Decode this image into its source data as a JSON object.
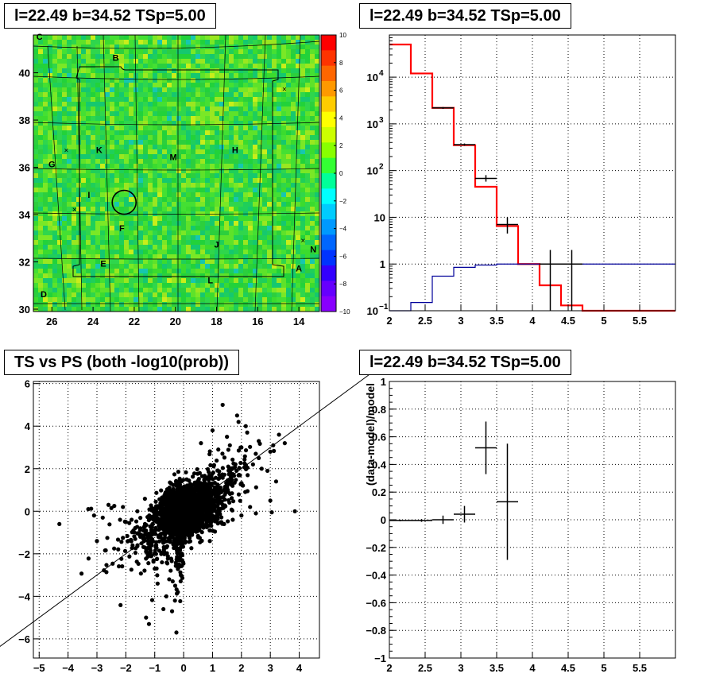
{
  "chart_data": [
    {
      "type": "heatmap",
      "title": "l=22.49 b=34.52 TSp=5.00",
      "x_ticks": [
        "26",
        "24",
        "22",
        "20",
        "18",
        "16",
        "14"
      ],
      "y_ticks": [
        "30",
        "32",
        "34",
        "36",
        "38",
        "40"
      ],
      "xlim": [
        26.9,
        13.0
      ],
      "ylim": [
        29.9,
        41.6
      ],
      "colorbar": {
        "range": [
          -10,
          10
        ],
        "ticks": [
          "10",
          "8",
          "6",
          "4",
          "2",
          "0",
          "-2",
          "-4",
          "-6",
          "-8",
          "-10"
        ]
      },
      "labels": [
        {
          "text": "C",
          "l": 26.6,
          "b": 41.4
        },
        {
          "text": "B",
          "l": 22.9,
          "b": 40.5
        },
        {
          "text": "K",
          "l": 23.7,
          "b": 36.6
        },
        {
          "text": "M",
          "l": 20.1,
          "b": 36.3
        },
        {
          "text": "H",
          "l": 17.1,
          "b": 36.6
        },
        {
          "text": "G",
          "l": 26.0,
          "b": 36.0
        },
        {
          "text": "I",
          "l": 24.2,
          "b": 34.7
        },
        {
          "text": "F",
          "l": 22.6,
          "b": 33.3
        },
        {
          "text": "J",
          "l": 18.0,
          "b": 32.6
        },
        {
          "text": "N",
          "l": 13.3,
          "b": 32.4
        },
        {
          "text": "E",
          "l": 23.5,
          "b": 31.8
        },
        {
          "text": "A",
          "l": 14.0,
          "b": 31.6
        },
        {
          "text": "L",
          "l": 18.3,
          "b": 31.1
        },
        {
          "text": "D",
          "l": 26.4,
          "b": 30.5
        }
      ],
      "crosses": [
        {
          "l": 14.7,
          "b": 39.3
        },
        {
          "l": 25.3,
          "b": 36.7
        },
        {
          "l": 24.9,
          "b": 34.2
        },
        {
          "l": 13.8,
          "b": 32.9
        }
      ],
      "circle": {
        "l": 22.49,
        "b": 34.52,
        "r": 0.6
      }
    },
    {
      "type": "line",
      "title": "l=22.49 b=34.52 TSp=5.00",
      "yscale": "log",
      "xlim": [
        2.0,
        6.0
      ],
      "ylim": [
        0.1,
        80000
      ],
      "x_ticks": [
        "2",
        "2.5",
        "3",
        "3.5",
        "4",
        "4.5",
        "5",
        "5.5"
      ],
      "y_ticks": [
        "10^-1",
        "1",
        "10",
        "10^2",
        "10^3",
        "10^4"
      ],
      "series": [
        {
          "color": "#ff0000",
          "bins": [
            2.0,
            2.3,
            2.6,
            2.9,
            3.2,
            3.5,
            3.8,
            4.1,
            4.4,
            4.7,
            5.0,
            5.3,
            5.6,
            6.0
          ],
          "values": [
            50000,
            12000,
            2200,
            350,
            45,
            6.5,
            1.0,
            0.35,
            0.13,
            0.1,
            0.1,
            0.1,
            0.1
          ]
        },
        {
          "color": "#000099",
          "bins": [
            2.0,
            2.3,
            2.6,
            2.9,
            3.2,
            3.5,
            3.8,
            4.1,
            4.4,
            4.7,
            5.0,
            5.3,
            5.6,
            6.0
          ],
          "values": [
            0.05,
            0.15,
            0.55,
            0.85,
            0.95,
            1.0,
            1.0,
            1.0,
            1.0,
            1.0,
            1.0,
            1.0,
            1.0
          ]
        },
        {
          "color": "#000000",
          "points": [
            {
              "x": 2.75,
              "xerr": 0.15,
              "y": 2200,
              "lo": 2100,
              "hi": 2300
            },
            {
              "x": 3.05,
              "xerr": 0.15,
              "y": 360,
              "lo": 340,
              "hi": 380
            },
            {
              "x": 3.35,
              "xerr": 0.15,
              "y": 68,
              "lo": 58,
              "hi": 80
            },
            {
              "x": 3.65,
              "xerr": 0.15,
              "y": 7,
              "lo": 4.5,
              "hi": 10
            },
            {
              "x": 4.25,
              "xerr": 0.15,
              "y": 1,
              "lo": 0.1,
              "hi": 2.0
            },
            {
              "x": 4.55,
              "xerr": 0.15,
              "y": 1,
              "lo": 0.1,
              "hi": 2.0
            }
          ]
        }
      ]
    },
    {
      "type": "scatter",
      "title": "TS vs PS (both -log10(prob))",
      "xlim": [
        -5.2,
        4.7
      ],
      "ylim": [
        -6.9,
        6.1
      ],
      "x_ticks": [
        "-5",
        "-4",
        "-3",
        "-2",
        "-1",
        "0",
        "1",
        "2",
        "3",
        "4"
      ],
      "y_ticks": [
        "-6",
        "-4",
        "-2",
        "0",
        "2",
        "4",
        "6"
      ],
      "diagonal": {
        "slope": 1,
        "intercept": 0
      },
      "cloud": {
        "n": 2500,
        "seed": 7,
        "x_mean": 0.1,
        "y_mean": 0.05,
        "x_sd": 0.45,
        "y_sd": 0.55
      },
      "points": [
        {
          "x": -4.3,
          "y": -0.6
        },
        {
          "x": -3.3,
          "y": 0.1
        },
        {
          "x": -3.2,
          "y": 0.12
        },
        {
          "x": -3.1,
          "y": -0.2
        },
        {
          "x": -3.0,
          "y": -1.4
        },
        {
          "x": -2.6,
          "y": 0.3
        },
        {
          "x": -2.4,
          "y": 0.25
        },
        {
          "x": -2.1,
          "y": 0.2
        },
        {
          "x": -2.0,
          "y": -0.5
        },
        {
          "x": -1.8,
          "y": -0.4
        },
        {
          "x": -1.5,
          "y": -1.2
        },
        {
          "x": -1.3,
          "y": -1.9
        },
        {
          "x": -1.2,
          "y": -5.3
        },
        {
          "x": -1.3,
          "y": -5.0
        },
        {
          "x": -0.7,
          "y": -4.6
        },
        {
          "x": -0.4,
          "y": -4.7
        },
        {
          "x": -0.25,
          "y": -5.7
        },
        {
          "x": -0.3,
          "y": -4.2
        },
        {
          "x": -0.6,
          "y": -4.0
        },
        {
          "x": -0.2,
          "y": -3.8
        },
        {
          "x": -0.9,
          "y": -3.4
        },
        {
          "x": -0.5,
          "y": -3.2
        },
        {
          "x": -0.1,
          "y": -3.0
        },
        {
          "x": -0.15,
          "y": -2.6
        },
        {
          "x": -0.05,
          "y": -2.3
        },
        {
          "x": -1.0,
          "y": -2.7
        },
        {
          "x": -0.75,
          "y": -2.4
        },
        {
          "x": 1.35,
          "y": 5.0
        },
        {
          "x": 1.85,
          "y": 4.5
        },
        {
          "x": 1.9,
          "y": 4.2
        },
        {
          "x": 2.15,
          "y": 4.0
        },
        {
          "x": 3.3,
          "y": 3.6
        },
        {
          "x": 3.1,
          "y": 3.1
        },
        {
          "x": 2.6,
          "y": 3.3
        },
        {
          "x": 2.2,
          "y": 3.7
        },
        {
          "x": 1.0,
          "y": 3.8
        },
        {
          "x": 1.5,
          "y": 3.5
        },
        {
          "x": 2.0,
          "y": 3.0
        },
        {
          "x": 1.6,
          "y": 3.1
        },
        {
          "x": 3.0,
          "y": 2.8
        },
        {
          "x": 2.6,
          "y": 2.5
        },
        {
          "x": 2.4,
          "y": 2.2
        },
        {
          "x": 2.9,
          "y": 1.9
        },
        {
          "x": 3.2,
          "y": 1.4
        },
        {
          "x": 3.0,
          "y": 0.5
        },
        {
          "x": 2.3,
          "y": 0.2
        },
        {
          "x": 2.5,
          "y": -0.1
        },
        {
          "x": 3.85,
          "y": 0.0
        },
        {
          "x": 3.05,
          "y": -0.05
        },
        {
          "x": 2.0,
          "y": -0.2
        },
        {
          "x": 1.7,
          "y": -0.4
        },
        {
          "x": 1.4,
          "y": -0.6
        },
        {
          "x": 0.9,
          "y": -0.9
        },
        {
          "x": -2.2,
          "y": -0.4
        },
        {
          "x": -1.6,
          "y": 0.0
        },
        {
          "x": -2.8,
          "y": -0.3
        },
        {
          "x": -1.1,
          "y": -1.6
        },
        {
          "x": -1.5,
          "y": -0.8
        },
        {
          "x": -2.5,
          "y": 0.15
        },
        {
          "x": 3.5,
          "y": 3.2
        },
        {
          "x": 2.7,
          "y": 2.0
        },
        {
          "x": 1.2,
          "y": 2.9
        },
        {
          "x": 0.6,
          "y": 3.2
        }
      ]
    },
    {
      "type": "scatter",
      "title": "l=22.49 b=34.52 TSp=5.00",
      "ylabel": "(data-model)/model",
      "xlim": [
        2.0,
        6.0
      ],
      "ylim": [
        -1.0,
        1.0
      ],
      "x_ticks": [
        "2",
        "2.5",
        "3",
        "3.5",
        "4",
        "4.5",
        "5",
        "5.5"
      ],
      "y_ticks": [
        "-1",
        "-0.8",
        "-0.6",
        "-0.4",
        "-0.2",
        "0",
        "0.2",
        "0.4",
        "0.6",
        "0.8",
        "1"
      ],
      "points": [
        {
          "x": 2.15,
          "xerr": 0.15,
          "y": -0.005,
          "err": 0.006
        },
        {
          "x": 2.45,
          "xerr": 0.15,
          "y": -0.005,
          "err": 0.01
        },
        {
          "x": 2.75,
          "xerr": 0.15,
          "y": 0.0,
          "err": 0.03
        },
        {
          "x": 3.05,
          "xerr": 0.15,
          "y": 0.04,
          "err": 0.06
        },
        {
          "x": 3.35,
          "xerr": 0.15,
          "y": 0.52,
          "err": 0.19
        },
        {
          "x": 3.65,
          "xerr": 0.15,
          "y": 0.13,
          "err": 0.42
        }
      ]
    }
  ]
}
